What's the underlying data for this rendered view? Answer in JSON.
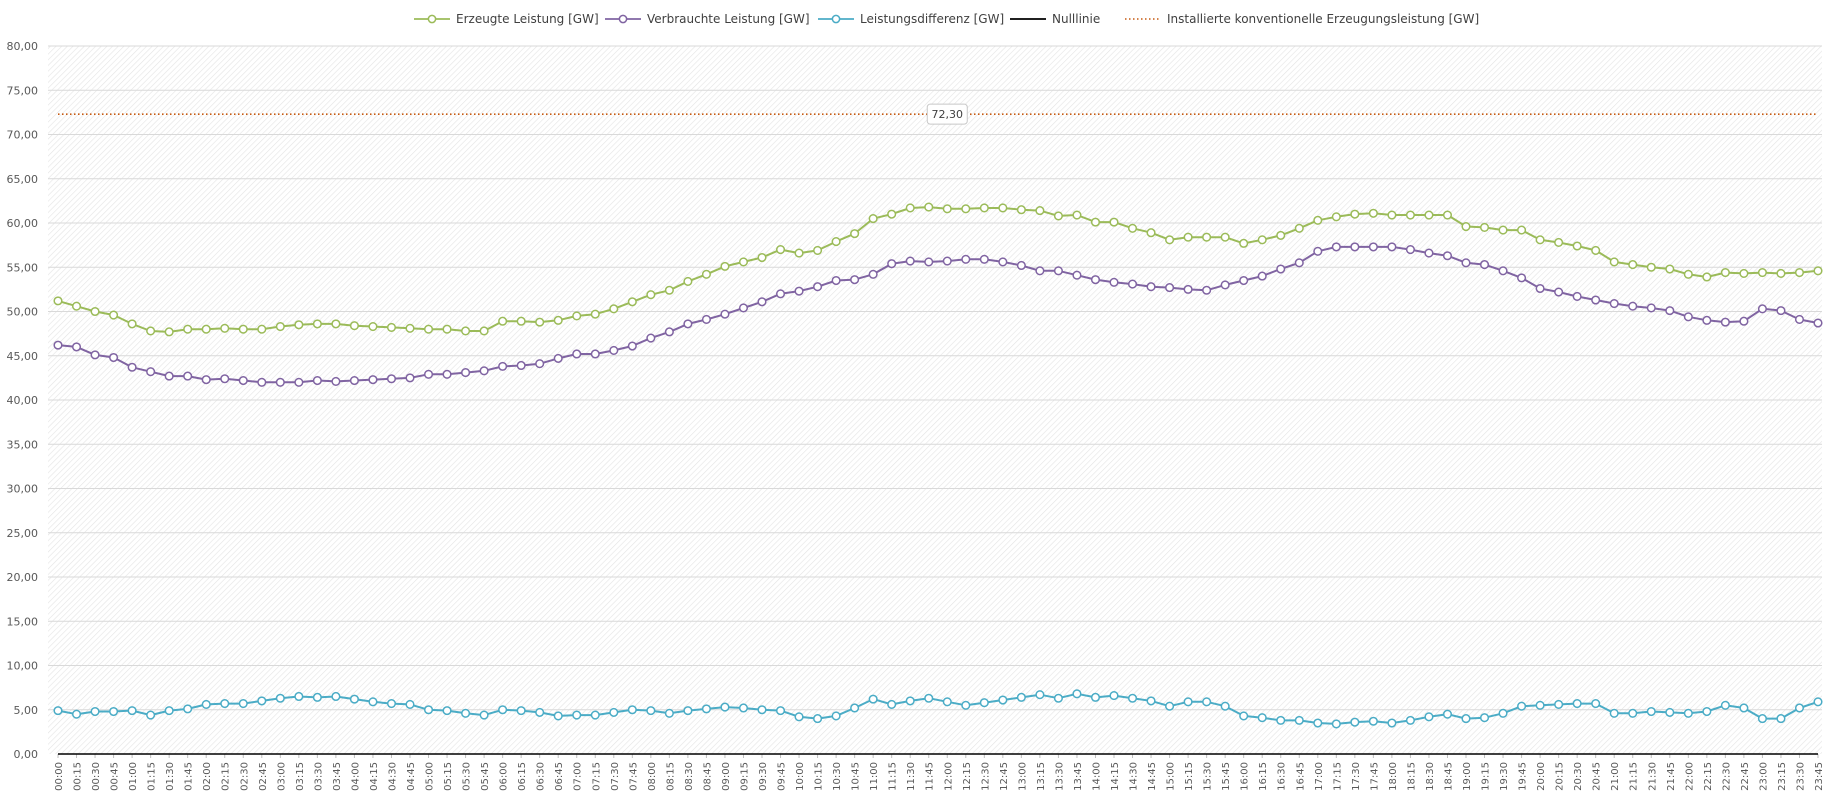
{
  "chart_data": {
    "type": "line",
    "title": "",
    "xlabel": "",
    "ylabel": "",
    "ylim": [
      0,
      80
    ],
    "y_ticks": [
      "0,00",
      "5,00",
      "10,00",
      "15,00",
      "20,00",
      "25,00",
      "30,00",
      "35,00",
      "40,00",
      "45,00",
      "50,00",
      "55,00",
      "60,00",
      "65,00",
      "70,00",
      "75,00",
      "80,00"
    ],
    "grid": true,
    "legend_position": "top",
    "x": [
      "00:00",
      "00:15",
      "00:30",
      "00:45",
      "01:00",
      "01:15",
      "01:30",
      "01:45",
      "02:00",
      "02:15",
      "02:30",
      "02:45",
      "03:00",
      "03:15",
      "03:30",
      "03:45",
      "04:00",
      "04:15",
      "04:30",
      "04:45",
      "05:00",
      "05:15",
      "05:30",
      "05:45",
      "06:00",
      "06:15",
      "06:30",
      "06:45",
      "07:00",
      "07:15",
      "07:30",
      "07:45",
      "08:00",
      "08:15",
      "08:30",
      "08:45",
      "09:00",
      "09:15",
      "09:30",
      "09:45",
      "10:00",
      "10:15",
      "10:30",
      "10:45",
      "11:00",
      "11:15",
      "11:30",
      "11:45",
      "12:00",
      "12:15",
      "12:30",
      "12:45",
      "13:00",
      "13:15",
      "13:30",
      "13:45",
      "14:00",
      "14:15",
      "14:30",
      "14:45",
      "15:00",
      "15:15",
      "15:30",
      "15:45",
      "16:00",
      "16:15",
      "16:30",
      "16:45",
      "17:00",
      "17:15",
      "17:30",
      "17:45",
      "18:00",
      "18:15",
      "18:30",
      "18:45",
      "19:00",
      "19:15",
      "19:30",
      "19:45",
      "20:00",
      "20:15",
      "20:30",
      "20:45",
      "21:00",
      "21:15",
      "21:30",
      "21:45",
      "22:00",
      "22:15",
      "22:30",
      "22:45",
      "23:00",
      "23:15",
      "23:30",
      "23:45"
    ],
    "series": [
      {
        "name": "Erzeugte Leistung [GW]",
        "color": "#9bbb59",
        "marker": "circle",
        "values": [
          51.2,
          50.6,
          50.0,
          49.6,
          48.6,
          47.8,
          47.7,
          48.0,
          48.0,
          48.1,
          48.0,
          48.0,
          48.3,
          48.5,
          48.6,
          48.6,
          48.4,
          48.3,
          48.2,
          48.1,
          48.0,
          48.0,
          47.8,
          47.8,
          48.9,
          48.9,
          48.8,
          49.0,
          49.5,
          49.7,
          50.3,
          51.1,
          51.9,
          52.4,
          53.4,
          54.2,
          55.1,
          55.6,
          56.1,
          57.0,
          56.6,
          56.9,
          57.9,
          58.8,
          60.5,
          61.0,
          61.7,
          61.8,
          61.6,
          61.6,
          61.7,
          61.7,
          61.5,
          61.4,
          60.8,
          60.9,
          60.1,
          60.1,
          59.4,
          58.9,
          58.1,
          58.4,
          58.4,
          58.4,
          57.7,
          58.1,
          58.6,
          59.4,
          60.3,
          60.7,
          61.0,
          61.1,
          60.9,
          60.9,
          60.9,
          60.9,
          59.6,
          59.5,
          59.2,
          59.2,
          58.1,
          57.8,
          57.4,
          56.9,
          55.6,
          55.3,
          55.0,
          54.8,
          54.2,
          53.9,
          54.4,
          54.3,
          54.4,
          54.3,
          54.4,
          54.6
        ]
      },
      {
        "name": "Verbrauchte Leistung [GW]",
        "color": "#8064a2",
        "marker": "circle",
        "values": [
          46.2,
          46.0,
          45.1,
          44.8,
          43.7,
          43.2,
          42.7,
          42.7,
          42.3,
          42.4,
          42.2,
          42.0,
          42.0,
          42.0,
          42.2,
          42.1,
          42.2,
          42.3,
          42.4,
          42.5,
          42.9,
          42.9,
          43.1,
          43.3,
          43.8,
          43.9,
          44.1,
          44.7,
          45.2,
          45.2,
          45.6,
          46.1,
          47.0,
          47.7,
          48.6,
          49.1,
          49.7,
          50.4,
          51.1,
          52.0,
          52.3,
          52.8,
          53.5,
          53.6,
          54.2,
          55.4,
          55.7,
          55.6,
          55.7,
          55.9,
          55.9,
          55.6,
          55.2,
          54.6,
          54.6,
          54.1,
          53.6,
          53.3,
          53.1,
          52.8,
          52.7,
          52.5,
          52.4,
          53.0,
          53.5,
          54.0,
          54.8,
          55.5,
          56.8,
          57.3,
          57.3,
          57.3,
          57.3,
          57.0,
          56.6,
          56.3,
          55.5,
          55.3,
          54.6,
          53.8,
          52.6,
          52.2,
          51.7,
          51.3,
          50.9,
          50.6,
          50.4,
          50.1,
          49.4,
          49.0,
          48.8,
          48.9,
          50.3,
          50.1,
          49.1,
          48.7
        ]
      },
      {
        "name": "Leistungsdifferenz [GW]",
        "color": "#4bacc6",
        "marker": "circle",
        "values": [
          4.9,
          4.5,
          4.8,
          4.8,
          4.9,
          4.4,
          4.9,
          5.1,
          5.6,
          5.7,
          5.7,
          6.0,
          6.3,
          6.5,
          6.4,
          6.5,
          6.2,
          5.9,
          5.7,
          5.6,
          5.0,
          4.9,
          4.6,
          4.4,
          5.0,
          4.9,
          4.7,
          4.3,
          4.4,
          4.4,
          4.7,
          5.0,
          4.9,
          4.6,
          4.9,
          5.1,
          5.3,
          5.2,
          5.0,
          4.9,
          4.2,
          4.0,
          4.3,
          5.2,
          6.2,
          5.6,
          6.0,
          6.3,
          5.9,
          5.5,
          5.8,
          6.1,
          6.4,
          6.7,
          6.3,
          6.8,
          6.4,
          6.6,
          6.3,
          6.0,
          5.4,
          5.9,
          5.9,
          5.4,
          4.3,
          4.1,
          3.8,
          3.8,
          3.5,
          3.4,
          3.6,
          3.7,
          3.5,
          3.8,
          4.2,
          4.5,
          4.0,
          4.1,
          4.6,
          5.4,
          5.5,
          5.6,
          5.7,
          5.7,
          4.6,
          4.6,
          4.8,
          4.7,
          4.6,
          4.8,
          5.5,
          5.2,
          4.0,
          4.0,
          5.2,
          5.9
        ]
      },
      {
        "name": "Nulllinie",
        "color": "#000000",
        "marker": "none",
        "values": "constant:0"
      },
      {
        "name": "Installierte konventionelle Erzeugungsleistung [GW]",
        "color": "#c65a11",
        "marker": "none",
        "style": "dotted",
        "value": 72.3
      }
    ],
    "annotations": [
      {
        "text": "72,30",
        "series": "Installierte konventionelle Erzeugungsleistung [GW]",
        "x": "12:00",
        "y": 72.3
      }
    ]
  }
}
